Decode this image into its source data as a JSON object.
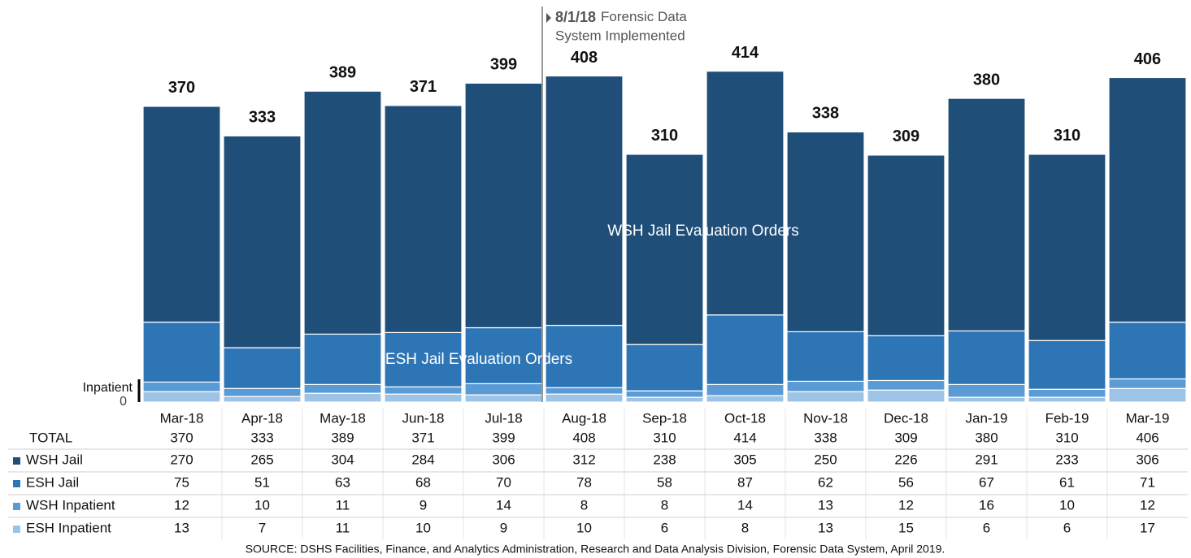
{
  "chart_data": {
    "type": "bar",
    "stacked": true,
    "categories": [
      "Mar-18",
      "Apr-18",
      "May-18",
      "Jun-18",
      "Jul-18",
      "Aug-18",
      "Sep-18",
      "Oct-18",
      "Nov-18",
      "Dec-18",
      "Jan-19",
      "Feb-19",
      "Mar-19"
    ],
    "series": [
      {
        "name": "WSH Jail",
        "color": "#1f4e79",
        "values": [
          270,
          265,
          304,
          284,
          306,
          312,
          238,
          305,
          250,
          226,
          291,
          233,
          306
        ]
      },
      {
        "name": "ESH Jail",
        "color": "#2e75b6",
        "values": [
          75,
          51,
          63,
          68,
          70,
          78,
          58,
          87,
          62,
          56,
          67,
          61,
          71
        ]
      },
      {
        "name": "WSH Inpatient",
        "color": "#5b9bd5",
        "values": [
          12,
          10,
          11,
          9,
          14,
          8,
          8,
          14,
          13,
          12,
          16,
          10,
          12
        ]
      },
      {
        "name": "ESH Inpatient",
        "color": "#9dc3e6",
        "values": [
          13,
          7,
          11,
          10,
          9,
          10,
          6,
          8,
          13,
          15,
          6,
          6,
          17
        ]
      }
    ],
    "total_label": "TOTAL",
    "totals": [
      370,
      333,
      389,
      371,
      399,
      408,
      310,
      414,
      338,
      309,
      380,
      310,
      406
    ],
    "ylim": [
      0,
      500
    ],
    "yticks": [
      0
    ],
    "annotations": {
      "event_date": "8/1/18",
      "event_lines": [
        "Forensic Data",
        "System Implemented"
      ],
      "wsh_region": "WSH Jail Evaluation Orders",
      "esh_region": "ESH Jail Evaluation Orders",
      "inpatient": "Inpatient"
    },
    "source": "SOURCE: DSHS Facilities, Finance, and Analytics Administration, Research and Data Analysis Division, Forensic Data System, April 2019."
  }
}
